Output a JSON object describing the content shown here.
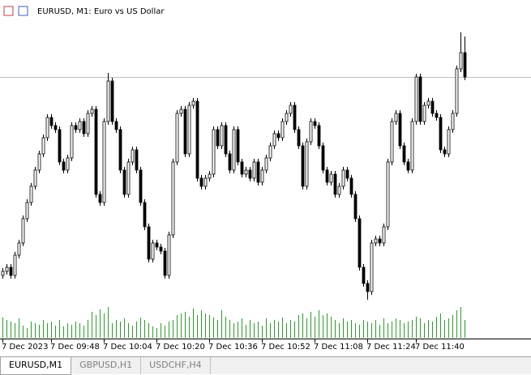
{
  "chart_data": {
    "type": "candlestick",
    "title": "EURUSD, M1:  Euro vs US Dollar",
    "categories": [
      "7 Dec 2023",
      null,
      null,
      null,
      null,
      null,
      null,
      null,
      null,
      null,
      null,
      null,
      "7 Dec 09:48",
      null,
      null,
      null,
      null,
      null,
      null,
      null,
      null,
      null,
      null,
      null,
      null,
      "7 Dec 10:04",
      null,
      null,
      null,
      null,
      null,
      null,
      null,
      null,
      null,
      null,
      null,
      null,
      "7 Dec 10:20",
      null,
      null,
      null,
      null,
      null,
      null,
      null,
      null,
      null,
      null,
      null,
      null,
      "7 Dec 10:36",
      null,
      null,
      null,
      null,
      null,
      null,
      null,
      null,
      null,
      null,
      null,
      null,
      "7 Dec 10:52",
      null,
      null,
      null,
      null,
      null,
      null,
      null,
      null,
      null,
      null,
      null,
      null,
      "7 Dec 11:08",
      null,
      null,
      null,
      null,
      null,
      null,
      null,
      null,
      null,
      null,
      null,
      null,
      "7 Dec 11:24",
      null,
      null,
      null,
      null,
      null,
      null,
      null,
      null,
      null,
      null,
      null,
      "7 Dec 11:40",
      null,
      null,
      null,
      null,
      null,
      null,
      null,
      null,
      null,
      null,
      null,
      null
    ],
    "open": [
      80,
      85,
      90,
      80,
      105,
      120,
      150,
      170,
      190,
      210,
      230,
      250,
      275,
      265,
      260,
      220,
      210,
      225,
      265,
      260,
      270,
      255,
      280,
      285,
      180,
      170,
      270,
      320,
      270,
      260,
      210,
      180,
      220,
      235,
      210,
      170,
      140,
      100,
      120,
      115,
      110,
      80,
      130,
      220,
      280,
      285,
      230,
      290,
      295,
      200,
      190,
      200,
      205,
      260,
      240,
      265,
      230,
      210,
      260,
      220,
      205,
      210,
      200,
      220,
      195,
      210,
      225,
      240,
      255,
      250,
      270,
      280,
      290,
      260,
      240,
      190,
      245,
      270,
      265,
      240,
      210,
      195,
      205,
      180,
      190,
      210,
      200,
      180,
      150,
      90,
      70,
      60,
      120,
      125,
      120,
      140,
      220,
      270,
      280,
      240,
      220,
      210,
      270,
      325,
      270,
      290,
      295,
      280,
      275,
      235,
      230,
      260,
      280,
      335,
      355
    ],
    "high": [
      89,
      94,
      94,
      109,
      124,
      154,
      174,
      194,
      214,
      234,
      254,
      279,
      279,
      269,
      264,
      224,
      229,
      269,
      269,
      274,
      274,
      284,
      289,
      289,
      184,
      274,
      330,
      324,
      274,
      264,
      214,
      224,
      239,
      239,
      214,
      174,
      144,
      124,
      124,
      119,
      114,
      134,
      224,
      284,
      289,
      289,
      294,
      299,
      299,
      204,
      204,
      209,
      264,
      264,
      269,
      269,
      234,
      264,
      264,
      224,
      214,
      214,
      224,
      224,
      214,
      229,
      244,
      259,
      259,
      274,
      284,
      294,
      294,
      264,
      244,
      249,
      274,
      274,
      269,
      244,
      214,
      209,
      209,
      194,
      214,
      214,
      204,
      184,
      154,
      94,
      74,
      124,
      129,
      129,
      144,
      224,
      274,
      284,
      284,
      244,
      224,
      274,
      329,
      329,
      294,
      299,
      299,
      284,
      279,
      239,
      264,
      284,
      339,
      380,
      375
    ],
    "low": [
      76,
      81,
      76,
      76,
      101,
      116,
      146,
      166,
      186,
      206,
      226,
      246,
      261,
      256,
      216,
      206,
      206,
      221,
      256,
      256,
      251,
      251,
      276,
      176,
      166,
      166,
      266,
      266,
      256,
      206,
      176,
      176,
      216,
      206,
      166,
      136,
      96,
      96,
      111,
      106,
      76,
      76,
      126,
      216,
      276,
      226,
      226,
      286,
      196,
      186,
      186,
      196,
      201,
      236,
      236,
      226,
      206,
      206,
      216,
      201,
      201,
      196,
      196,
      191,
      191,
      206,
      221,
      236,
      246,
      246,
      266,
      276,
      256,
      236,
      186,
      186,
      241,
      261,
      236,
      206,
      191,
      191,
      176,
      176,
      186,
      196,
      176,
      146,
      86,
      66,
      50,
      56,
      116,
      116,
      116,
      136,
      216,
      266,
      236,
      216,
      206,
      206,
      266,
      266,
      266,
      286,
      276,
      271,
      231,
      226,
      226,
      256,
      276,
      331,
      321
    ],
    "close": [
      85,
      90,
      80,
      105,
      120,
      150,
      170,
      190,
      210,
      230,
      250,
      275,
      265,
      260,
      220,
      210,
      225,
      265,
      260,
      270,
      255,
      280,
      285,
      180,
      170,
      270,
      320,
      270,
      260,
      210,
      180,
      220,
      235,
      210,
      170,
      140,
      100,
      120,
      115,
      110,
      80,
      130,
      220,
      280,
      285,
      230,
      290,
      295,
      200,
      190,
      200,
      205,
      260,
      240,
      265,
      230,
      210,
      260,
      220,
      205,
      210,
      200,
      220,
      195,
      210,
      225,
      240,
      255,
      250,
      270,
      280,
      290,
      260,
      240,
      190,
      245,
      270,
      265,
      240,
      210,
      195,
      205,
      180,
      190,
      210,
      200,
      180,
      150,
      90,
      70,
      60,
      120,
      125,
      120,
      140,
      220,
      270,
      280,
      240,
      220,
      210,
      270,
      325,
      270,
      290,
      295,
      280,
      275,
      235,
      230,
      260,
      280,
      335,
      355,
      325
    ],
    "volume": [
      25,
      22,
      20,
      18,
      24,
      15,
      12,
      20,
      18,
      16,
      22,
      18,
      20,
      15,
      22,
      14,
      18,
      16,
      20,
      18,
      15,
      22,
      32,
      28,
      35,
      30,
      38,
      18,
      22,
      20,
      24,
      18,
      15,
      20,
      25,
      22,
      18,
      14,
      12,
      18,
      15,
      20,
      22,
      28,
      30,
      32,
      26,
      36,
      28,
      34,
      30,
      28,
      25,
      22,
      34,
      26,
      22,
      18,
      20,
      24,
      16,
      22,
      18,
      20,
      15,
      24,
      18,
      22,
      20,
      25,
      18,
      22,
      20,
      28,
      30,
      24,
      32,
      26,
      34,
      28,
      30,
      26,
      22,
      18,
      24,
      20,
      22,
      18,
      16,
      22,
      20,
      18,
      22,
      16,
      24,
      18,
      20,
      24,
      22,
      18,
      20,
      22,
      26,
      24,
      18,
      22,
      20,
      26,
      30,
      22,
      24,
      28,
      34,
      38,
      22
    ],
    "ylim": [
      0,
      420
    ],
    "volume_ylim": [
      0,
      40
    ],
    "up_color": "#ffffff",
    "down_color": "#000000",
    "volume_color": "#2e9a2e"
  },
  "tabs": [
    "EURUSD,M1",
    "GBPUSD,H1",
    "USDCHF,H4"
  ]
}
